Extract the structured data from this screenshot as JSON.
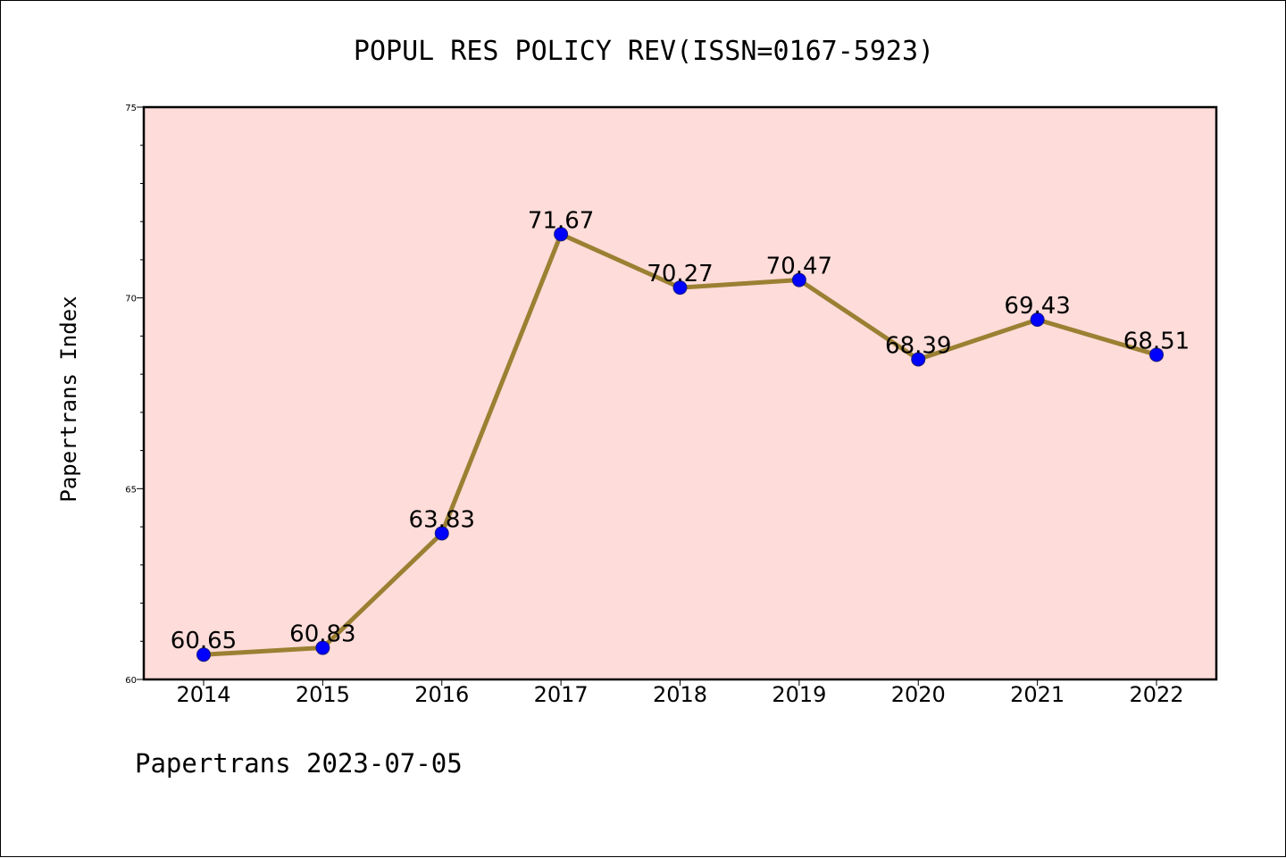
{
  "chart_data": {
    "type": "line",
    "title": "POPUL RES POLICY REV(ISSN=0167-5923)",
    "ylabel": "Papertrans Index",
    "xlabel": "",
    "categories": [
      "2014",
      "2015",
      "2016",
      "2017",
      "2018",
      "2019",
      "2020",
      "2021",
      "2022"
    ],
    "series": [
      {
        "values": [
          60.65,
          60.83,
          63.83,
          71.67,
          70.27,
          70.47,
          68.39,
          69.43,
          68.51
        ],
        "labels": [
          "60.65",
          "60.83",
          "63.83",
          "71.67",
          "70.27",
          "70.47",
          "68.39",
          "69.43",
          "68.51"
        ]
      }
    ],
    "ylim": [
      60,
      75
    ],
    "yticks": [
      "60",
      "65",
      "70",
      "75"
    ],
    "grid": false,
    "colors": {
      "plot_background": "#fddcd9",
      "line": "#9b8033",
      "marker": "#0000ff"
    }
  },
  "footer": "Papertrans 2023-07-05"
}
